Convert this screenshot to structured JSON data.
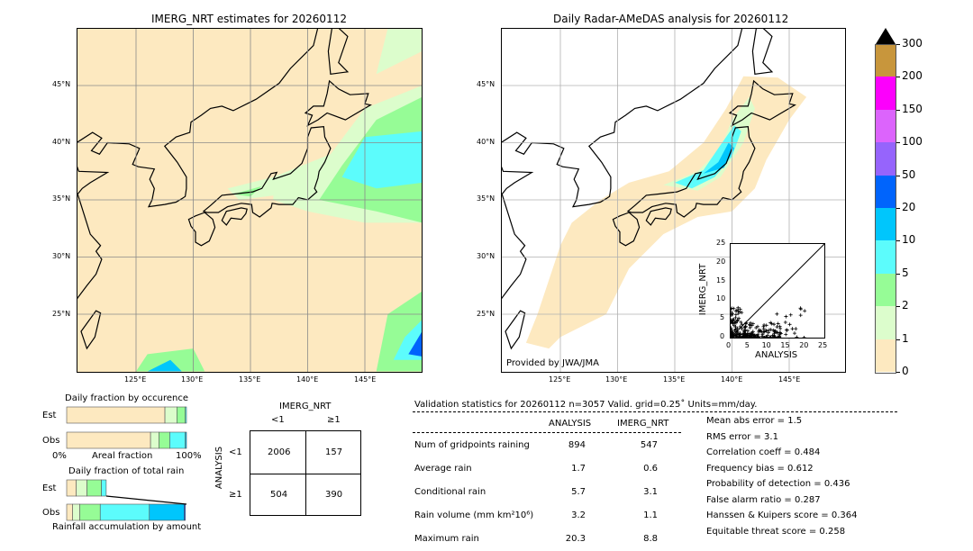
{
  "left_map": {
    "title": "IMERG_NRT estimates for 20260112"
  },
  "right_map": {
    "title": "Daily Radar-AMeDAS analysis for 20260112",
    "credit": "Provided by JWA/JMA"
  },
  "lon_ticks": [
    "125°E",
    "130°E",
    "135°E",
    "140°E",
    "145°E"
  ],
  "lat_ticks": [
    "45°N",
    "40°N",
    "35°N",
    "30°N",
    "25°N"
  ],
  "colors": {
    "c0": "#fde9c0",
    "c1": "#dcfdcc",
    "c2": "#96fc96",
    "c5": "#5cfcfc",
    "c10": "#00c6fc",
    "c20": "#0064fc",
    "c50": "#9664fc",
    "c100": "#dc64fc",
    "c150": "#fc00fc",
    "c200": "#c8963c"
  },
  "chart_data": [
    {
      "type": "colorbar",
      "levels": [
        "0",
        "1",
        "2",
        "5",
        "10",
        "20",
        "50",
        "100",
        "150",
        "200",
        "300"
      ],
      "colors": [
        "#fde9c0",
        "#dcfdcc",
        "#96fc96",
        "#5cfcfc",
        "#00c6fc",
        "#0064fc",
        "#9664fc",
        "#dc64fc",
        "#fc00fc",
        "#c8963c"
      ],
      "extend": "max"
    },
    {
      "type": "scatter",
      "xlabel": "ANALYSIS",
      "ylabel": "IMERG_NRT",
      "xlim": [
        0,
        25
      ],
      "ylim": [
        0,
        25
      ],
      "ticks": [
        "0",
        "5",
        "10",
        "15",
        "20",
        "25"
      ]
    },
    {
      "type": "bar",
      "title": "Daily fraction by occurence",
      "xlabel": "Areal fraction",
      "x_left": "0%",
      "x_right": "100%",
      "rows": [
        {
          "label": "Est",
          "fractions": [
            0.82,
            0.1,
            0.07,
            0.01
          ]
        },
        {
          "label": "Obs",
          "fractions": [
            0.7,
            0.07,
            0.09,
            0.13,
            0.01
          ]
        }
      ]
    },
    {
      "type": "bar",
      "title": "Daily fraction of total rain",
      "xlabel": "Rainfall accumulation by amount",
      "rows": [
        {
          "label": "Est",
          "fractions": [
            0.08,
            0.09,
            0.12,
            0.04
          ]
        },
        {
          "label": "Obs",
          "fractions": [
            0.05,
            0.06,
            0.17,
            0.41,
            0.29,
            0.01
          ]
        }
      ]
    },
    {
      "type": "table",
      "title": "IMERG_NRT",
      "col_headers": [
        "<1",
        "≥1"
      ],
      "row_title": "ANALYSIS",
      "row_headers": [
        "<1",
        "≥1"
      ],
      "cells": [
        [
          "2006",
          "157"
        ],
        [
          "504",
          "390"
        ]
      ]
    }
  ],
  "stats": {
    "header": "Validation statistics for 20260112  n=3057 Valid. grid=0.25˚ Units=mm/day.",
    "col_analysis": "ANALYSIS",
    "col_imerg": "IMERG_NRT",
    "rows": [
      {
        "label": "Num of gridpoints raining",
        "a": "894",
        "b": "547"
      },
      {
        "label": "Average rain",
        "a": "1.7",
        "b": "0.6"
      },
      {
        "label": "Conditional rain",
        "a": "5.7",
        "b": "3.1"
      },
      {
        "label": "Rain volume (mm km²10⁶)",
        "a": "3.2",
        "b": "1.1"
      },
      {
        "label": "Maximum rain",
        "a": "20.3",
        "b": "8.8"
      }
    ],
    "scores": [
      "Mean abs error =    1.5",
      "RMS error =    3.1",
      "Correlation coeff =  0.484",
      "Frequency bias =  0.612",
      "Probability of detection =  0.436",
      "False alarm ratio =  0.287",
      "Hanssen & Kuipers score =  0.364",
      "Equitable threat score =  0.258"
    ]
  }
}
